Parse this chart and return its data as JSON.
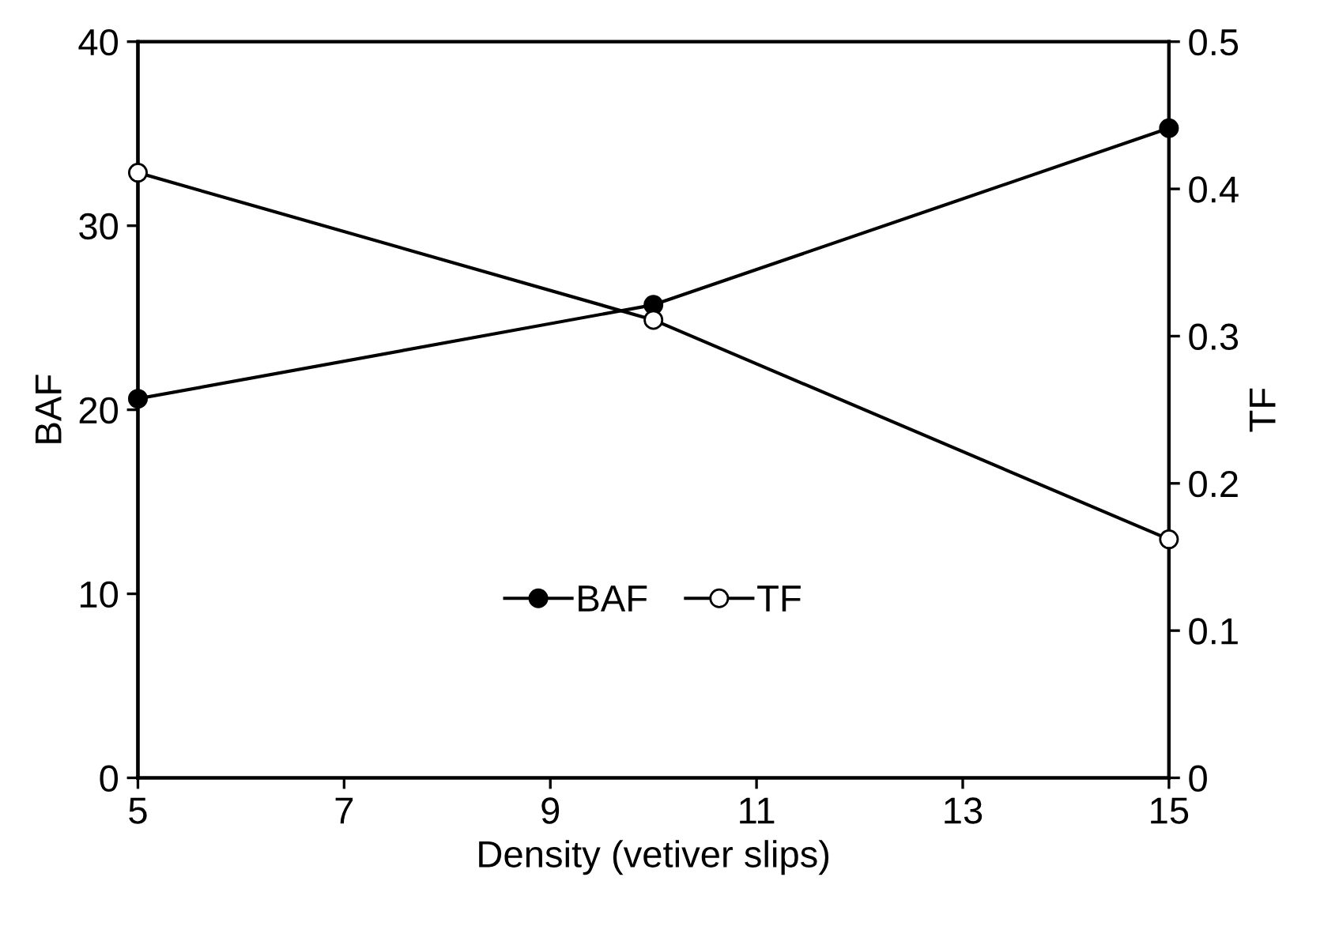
{
  "chart_data": {
    "type": "line",
    "xlabel": "Density (vetiver slips)",
    "ylabel": "BAF",
    "y2label": "TF",
    "x": [
      5,
      10,
      15
    ],
    "series": [
      {
        "name": "BAF",
        "color": "#000000",
        "values": [
          20.6,
          25.7,
          35.3
        ],
        "marker": "circle"
      },
      {
        "name": "TF",
        "color": "#000000",
        "values": [
          0.411,
          0.311,
          0.162
        ],
        "marker": "circle",
        "axis": "y2"
      }
    ],
    "xlim": [
      5,
      15
    ],
    "xticks": [
      5,
      7,
      9,
      11,
      13,
      15
    ],
    "ylim": [
      0,
      40
    ],
    "yticks": [
      0,
      10,
      20,
      30,
      40
    ],
    "y2lim": [
      0,
      0.5
    ],
    "y2ticks": [
      0,
      0.1,
      0.2,
      0.3,
      0.4,
      0.5
    ],
    "grid": false,
    "legend": "bottom",
    "line_style": "solid"
  }
}
